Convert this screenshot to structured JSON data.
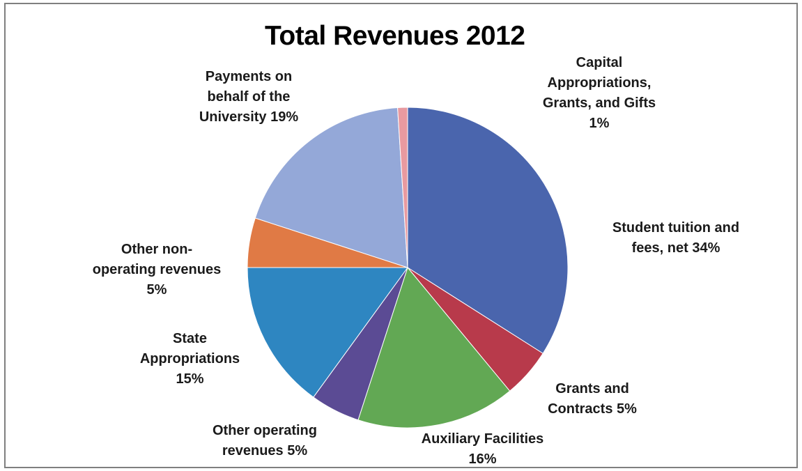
{
  "chart_data": {
    "type": "pie",
    "title": "Total Revenues 2012",
    "slices": [
      {
        "label": "Student tuition and\nfees, net 34%",
        "value": 34,
        "color": "#4a65ad"
      },
      {
        "label": "Grants and\nContracts 5%",
        "value": 5,
        "color": "#b83a4b"
      },
      {
        "label": "Auxiliary Facilities\n16%",
        "value": 16,
        "color": "#62a854"
      },
      {
        "label": "Other operating\nrevenues 5%",
        "value": 5,
        "color": "#5b4b94"
      },
      {
        "label": "State\nAppropriations\n15%",
        "value": 15,
        "color": "#2e86c1"
      },
      {
        "label": "Other non-\noperating revenues\n5%",
        "value": 5,
        "color": "#e07a45"
      },
      {
        "label": "Payments on\nbehalf of the\nUniversity 19%",
        "value": 19,
        "color": "#94a8d8"
      },
      {
        "label": "Capital\nAppropriations,\nGrants, and Gifts\n1%",
        "value": 1,
        "color": "#e89aa0"
      }
    ]
  }
}
